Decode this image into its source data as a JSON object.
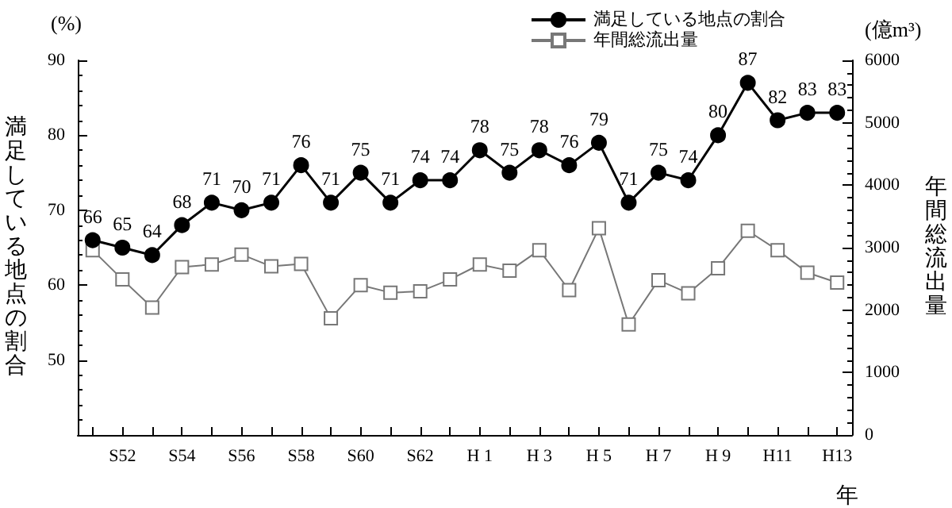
{
  "chart_data": {
    "type": "line",
    "ylabel": "満足している地点の割合",
    "y2label": "年間総流出量",
    "xlabel": "年",
    "annotations": [
      "(%)",
      "(億m³)"
    ],
    "categories": [
      null,
      "S52",
      null,
      "S54",
      null,
      "S56",
      null,
      "S58",
      null,
      "S60",
      null,
      "S62",
      null,
      "H 1",
      null,
      "H 3",
      null,
      "H 5",
      null,
      "H 7",
      null,
      "H 9",
      null,
      "H11",
      null,
      "H13"
    ],
    "series": [
      {
        "name": "満足している地点の割合",
        "color": "#000000",
        "marker": "circle",
        "data_labels": true,
        "values": [
          66,
          65,
          64,
          68,
          71,
          70,
          71,
          76,
          71,
          75,
          71,
          74,
          74,
          78,
          75,
          78,
          76,
          79,
          71,
          75,
          74,
          80,
          87,
          82,
          83,
          83
        ]
      },
      {
        "name": "年間総流出量",
        "color": "#777777",
        "marker": "square",
        "axis": "y2",
        "values": [
          2960,
          2490,
          2040,
          2690,
          2730,
          2890,
          2700,
          2740,
          1870,
          2400,
          2280,
          2300,
          2490,
          2730,
          2630,
          2960,
          2320,
          3310,
          1770,
          2480,
          2270,
          2670,
          3270,
          2960,
          2600,
          2440
        ]
      }
    ],
    "ylim": [
      40,
      90
    ],
    "yticks": [
      50,
      60,
      70,
      80,
      90
    ],
    "y2lim": [
      0,
      6000
    ],
    "y2ticks": [
      0,
      1000,
      2000,
      3000,
      4000,
      5000,
      6000
    ],
    "grid": false,
    "legend": "top right"
  }
}
